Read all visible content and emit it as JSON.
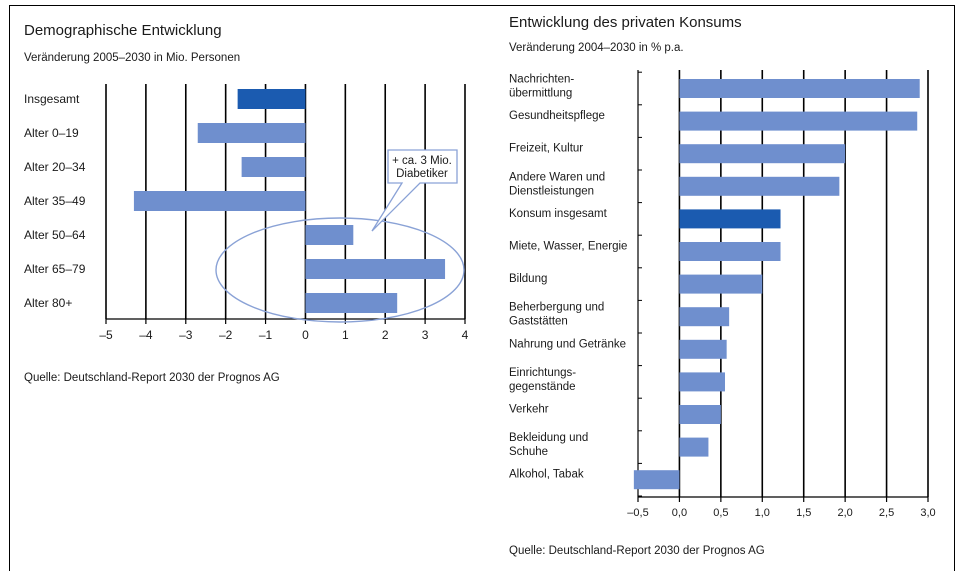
{
  "charts": {
    "demo": {
      "title": "Demographische Entwicklung",
      "subtitle": "Veränderung 2005–2030 in Mio. Personen",
      "source": "Quelle: Deutschland-Report 2030 der Prognos AG",
      "annotation": [
        "+ ca. 3 Mio.",
        "Diabetiker"
      ]
    },
    "konsum": {
      "title": "Entwicklung des privaten Konsums",
      "subtitle": "Veränderung 2004–2030 in % p.a.",
      "source": "Quelle: Deutschland-Report 2030 der Prognos AG"
    }
  },
  "chart_data": [
    {
      "type": "bar",
      "orientation": "horizontal",
      "title": "Demographische Entwicklung",
      "subtitle": "Veränderung 2005–2030 in Mio. Personen",
      "categories": [
        "Insgesamt",
        "Alter 0–19",
        "Alter 20–34",
        "Alter 35–49",
        "Alter 50–64",
        "Alter 65–79",
        "Alter 80+"
      ],
      "values": [
        -1.7,
        -2.7,
        -1.6,
        -4.3,
        1.2,
        3.5,
        2.3
      ],
      "highlight": [
        "Insgesamt"
      ],
      "xlim": [
        -5,
        4
      ],
      "xticks": [
        "–5",
        "–4",
        "–3",
        "–2",
        "–1",
        "0",
        "1",
        "2",
        "3",
        "4"
      ],
      "grid": true,
      "colors": {
        "bar": "#6f8fce",
        "highlight": "#1b5bb0",
        "ellipse": "#8aa2d6"
      }
    },
    {
      "type": "bar",
      "orientation": "horizontal",
      "title": "Entwicklung des privaten Konsums",
      "subtitle": "Veränderung 2004–2030 in % p.a.",
      "categories": [
        [
          "Nachrichten-",
          "übermittlung"
        ],
        [
          "Gesundheitspflege"
        ],
        [
          "Freizeit, Kultur"
        ],
        [
          "Andere Waren und",
          "Dienstleistungen"
        ],
        [
          "Konsum insgesamt"
        ],
        [
          "Miete, Wasser, Energie"
        ],
        [
          "Bildung"
        ],
        [
          "Beherbergung und",
          "Gaststätten"
        ],
        [
          "Nahrung und Getränke"
        ],
        [
          "Einrichtungs-",
          "gegenstände"
        ],
        [
          "Verkehr"
        ],
        [
          "Bekleidung und",
          "Schuhe"
        ],
        [
          "Alkohol, Tabak"
        ]
      ],
      "values": [
        2.9,
        2.87,
        2.0,
        1.93,
        1.22,
        1.22,
        1.0,
        0.6,
        0.57,
        0.55,
        0.5,
        0.35,
        -0.55
      ],
      "highlight_index": 4,
      "xlim": [
        -0.5,
        3.0
      ],
      "xticks": [
        "–0,5",
        "0,0",
        "0,5",
        "1,0",
        "1,5",
        "2,0",
        "2,5",
        "3,0"
      ],
      "grid": true,
      "colors": {
        "bar": "#6f8fce",
        "highlight": "#1b5bb0"
      }
    }
  ]
}
